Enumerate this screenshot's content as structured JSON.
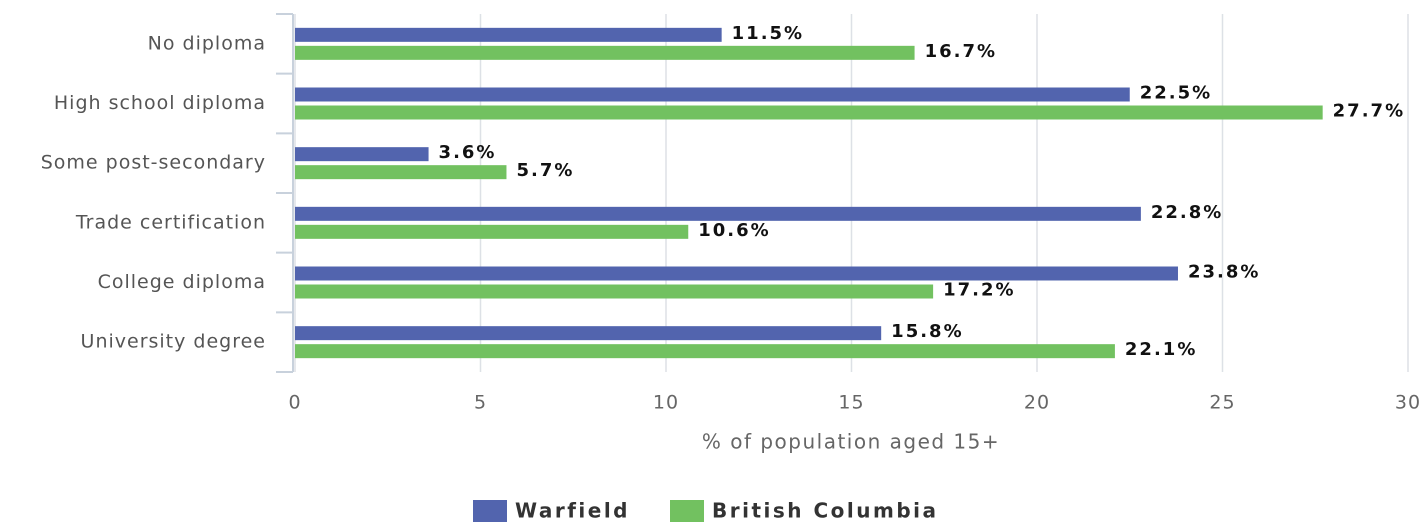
{
  "chart_data": {
    "type": "bar",
    "orientation": "horizontal",
    "categories": [
      "No diploma",
      "High school diploma",
      "Some post-secondary",
      "Trade certification",
      "College diploma",
      "University degree"
    ],
    "series": [
      {
        "name": "Warfield",
        "color": "#5264ae",
        "values": [
          11.5,
          22.5,
          3.6,
          22.8,
          23.8,
          15.8
        ],
        "value_labels": [
          "11.5%",
          "22.5%",
          "3.6%",
          "22.8%",
          "23.8%",
          "15.8%"
        ]
      },
      {
        "name": "British Columbia",
        "color": "#72c160",
        "values": [
          16.7,
          27.7,
          5.7,
          10.6,
          17.2,
          22.1
        ],
        "value_labels": [
          "16.7%",
          "27.7%",
          "5.7%",
          "10.6%",
          "17.2%",
          "22.1%"
        ]
      }
    ],
    "xlabel": "% of population aged 15+",
    "xlim": [
      0,
      30
    ],
    "xticks": [
      0,
      5,
      10,
      15,
      20,
      25,
      30
    ],
    "grid": true,
    "legend": "bottom"
  }
}
